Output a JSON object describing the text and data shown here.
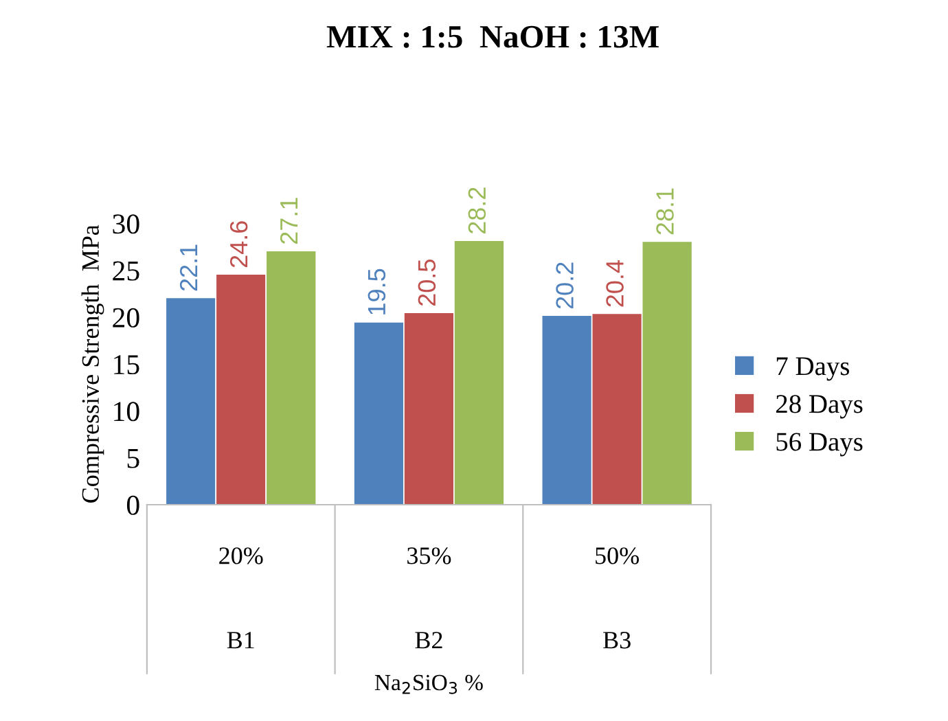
{
  "chart_data": {
    "type": "bar",
    "title": "MIX : 1:5  NaOH : 13M",
    "annotations": [
      "Na$_{2}$SiO$_{3}$ %"
    ],
    "ylabel": "Compressive Strength  MPa",
    "categories": [
      "20%\nB1",
      "35%\nB2",
      "50%\nB3"
    ],
    "series": [
      {
        "name": "7 Days",
        "color": "#4f81bd",
        "values": [
          22.1,
          19.5,
          20.2
        ]
      },
      {
        "name": "28 Days",
        "color": "#c0504d",
        "values": [
          24.6,
          20.5,
          20.4
        ]
      },
      {
        "name": "56 Days",
        "color": "#9bbb59",
        "values": [
          27.1,
          28.2,
          28.1
        ]
      }
    ],
    "ylim": [
      0,
      30
    ],
    "yticks": [
      0,
      5,
      10,
      15,
      20,
      25,
      30
    ],
    "grid": false,
    "legend": "right",
    "data_labels": true
  }
}
